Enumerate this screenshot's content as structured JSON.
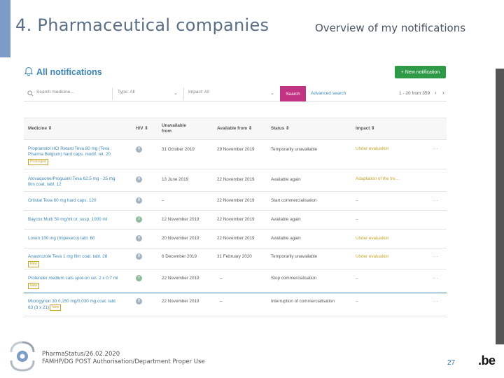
{
  "slide": {
    "title": "4. Pharmaceutical companies",
    "subtitle": "Overview of my notifications"
  },
  "app": {
    "title": "All notifications",
    "new_button": "+ New notification",
    "filters": {
      "search_placeholder": "Search medicine...",
      "type": "Type: All",
      "impact": "Impact: All",
      "search_button": "Search",
      "advanced_search": "Advanced search",
      "pager": "1 - 20 from 359"
    },
    "columns": {
      "medicine": "Medicine ⇕",
      "hv": "H/V ⇕",
      "unavailable_from_1": "Unavailable",
      "unavailable_from_2": "from",
      "available_from": "Available from ⇕",
      "status": "Status ⇕",
      "impact": "Impact ⇕"
    },
    "rows": [
      {
        "medicine_1": "Propranolol HCl Retard Teva 80 mg (Teva",
        "medicine_2": "Pharma Belgium) hard caps. modif. rel. 20",
        "badge": "Prolonged",
        "hv": "H",
        "unavailable": "31 October 2019",
        "available": "29 November 2019",
        "status": "Temporarily unavailable",
        "impact": "Under evaluation",
        "more": "···"
      },
      {
        "medicine_1": "Atovaquone/Proguanil Teva 62.5 mg - 25 mg",
        "medicine_2": "film coat. tabl. 12",
        "hv": "H",
        "unavailable": "13 June 2019",
        "available": "22 November 2019",
        "status": "Available again",
        "impact": "Adaptation of the tre...",
        "more": ""
      },
      {
        "medicine_1": "Orlistat Teva 60 mg hard caps. 120",
        "hv": "H",
        "unavailable": "–",
        "available": "22 November 2019",
        "status": "Start commercialisation",
        "impact": "–",
        "more": "···"
      },
      {
        "medicine_1": "Baycox Multi 50 mg/ml or. susp. 1000 ml",
        "hv": "V",
        "unavailable": "12 November 2019",
        "available": "22 November 2019",
        "status": "Available again",
        "impact": "–",
        "more": ""
      },
      {
        "medicine_1": "Loxen 100 mg (Impexeco) tabl. 60",
        "hv": "H",
        "unavailable": "20 November 2019",
        "available": "22 November 2019",
        "status": "Available again",
        "impact": "Under evaluation",
        "more": ""
      },
      {
        "medicine_1": "Anastrozole Teva 1 mg film coat. tabl. 28",
        "badge": "New",
        "hv": "H",
        "unavailable": "6 December 2019",
        "available": "31 February 2020",
        "status": "Temporarily unavailable",
        "impact": "Under evaluation",
        "more": "···"
      },
      {
        "medicine_1": "Profender medium cats spot-on sol. 2 x 0.7 ml",
        "badge": "New",
        "hv": "V",
        "unavailable": "22 November 2019",
        "available": "–",
        "status": "Stop commercialisation",
        "impact": "–",
        "more": "···"
      },
      {
        "medicine_1": "Microgynon 30 0,150 mg/0,030 mg coat. tabl.",
        "medicine_2": "63 (3 x 21)",
        "badge": "New",
        "hv": "H",
        "unavailable": "22 November 2019",
        "available": "–",
        "status": "Interruption of commercialisation",
        "impact": "–",
        "more": "···"
      }
    ]
  },
  "footer": {
    "line1": "PharmaStatus/26.02.2020",
    "line2": "FAMHP/DG POST Authorisation/Department Proper Use",
    "page_number": "27",
    "be_logo": ".be"
  },
  "colors": {
    "accent_blue": "#3c86b6",
    "new_button": "#2e9a47",
    "search_button": "#c23384",
    "impact_text": "#c5a52b"
  }
}
